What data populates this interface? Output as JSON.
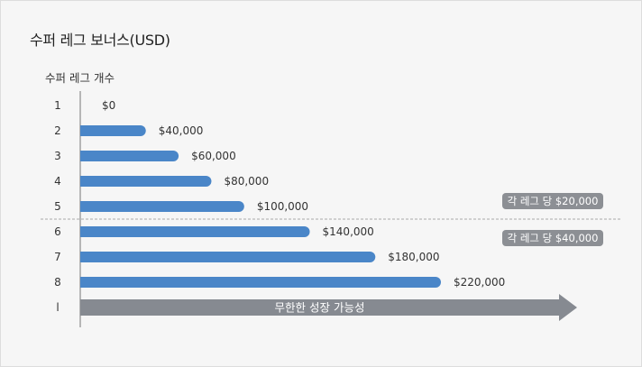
{
  "title": "수퍼 레그 보너스(USD)",
  "colors": {
    "bar": "#4a86c8",
    "arrow": "#868a91",
    "badge": "#8c8f94",
    "axis": "#777777",
    "divider": "#aaaaaa"
  },
  "chart_data": {
    "type": "bar",
    "orientation": "horizontal",
    "ylabel": "수퍼 레그 개수",
    "categories": [
      "1",
      "2",
      "3",
      "4",
      "5",
      "6",
      "7",
      "8"
    ],
    "values": [
      0,
      40000,
      60000,
      80000,
      100000,
      140000,
      180000,
      220000
    ],
    "value_labels": [
      "$0",
      "$40,000",
      "$60,000",
      "$80,000",
      "$100,000",
      "$140,000",
      "$180,000",
      "$220,000"
    ],
    "extra_category": "l",
    "arrow_label": "무한한 성장 가능성",
    "divider_after_category": "5",
    "badges": [
      {
        "text": "각 레그 당 $20,000",
        "group": "upper"
      },
      {
        "text": "각 레그 당 $40,000",
        "group": "lower"
      }
    ],
    "grid": false
  }
}
